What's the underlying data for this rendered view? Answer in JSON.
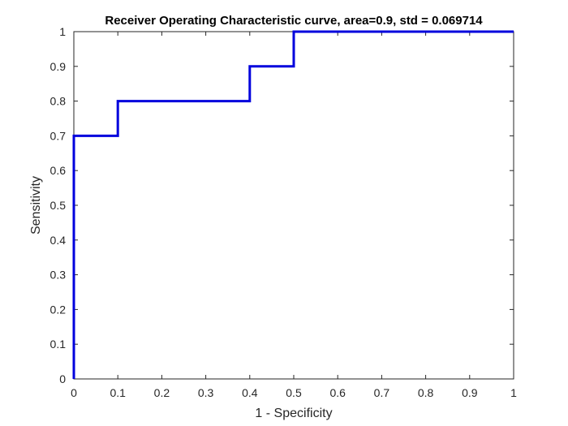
{
  "chart_data": {
    "type": "line",
    "title": "Receiver Operating Characteristic curve, area=0.9, std = 0.069714",
    "xlabel": "1 - Specificity",
    "ylabel": "Sensitivity",
    "xlim": [
      0,
      1
    ],
    "ylim": [
      0,
      1
    ],
    "xticks": [
      "0",
      "0.1",
      "0.2",
      "0.3",
      "0.4",
      "0.5",
      "0.6",
      "0.7",
      "0.8",
      "0.9",
      "1"
    ],
    "yticks": [
      "0",
      "0.1",
      "0.2",
      "0.3",
      "0.4",
      "0.5",
      "0.6",
      "0.7",
      "0.8",
      "0.9",
      "1"
    ],
    "grid": false,
    "legend": "none",
    "line_color": "#0000dd",
    "series": [
      {
        "x": [
          0,
          0,
          0.1,
          0.1,
          0.4,
          0.4,
          0.5,
          0.5,
          1
        ],
        "y": [
          0,
          0.7,
          0.7,
          0.8,
          0.8,
          0.9,
          0.9,
          1,
          1
        ]
      }
    ]
  }
}
